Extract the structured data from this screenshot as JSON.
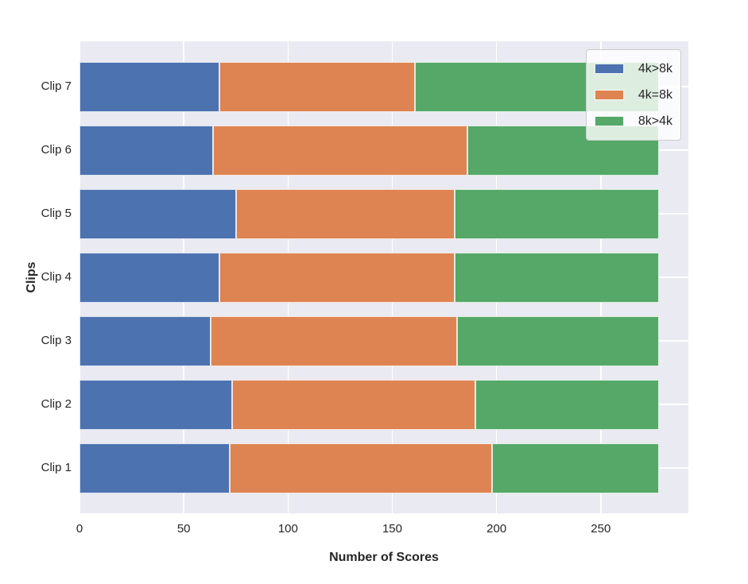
{
  "chart_data": {
    "type": "bar",
    "orientation": "horizontal",
    "stacked": true,
    "title": "",
    "xlabel": "Number of Scores",
    "ylabel": "Clips",
    "categories": [
      "Clip 7",
      "Clip 6",
      "Clip 5",
      "Clip 4",
      "Clip 3",
      "Clip 2",
      "Clip 1"
    ],
    "series": [
      {
        "name": "4k>8k",
        "color": "#4C72B0",
        "values": [
          67,
          64,
          75,
          67,
          63,
          73,
          72
        ]
      },
      {
        "name": "4k=8k",
        "color": "#DD8452",
        "values": [
          94,
          122,
          105,
          113,
          118,
          117,
          126
        ]
      },
      {
        "name": "8k>4k",
        "color": "#55A868",
        "values": [
          117,
          92,
          98,
          98,
          97,
          88,
          80
        ]
      }
    ],
    "totals_per_category": [
      278,
      278,
      278,
      278,
      278,
      278,
      278
    ],
    "xlim": [
      0,
      292
    ],
    "xticks": [
      0,
      50,
      100,
      150,
      200,
      250
    ],
    "grid": true,
    "legend_position": "upper right",
    "colors": {
      "plot_background": "#EAEAF2",
      "grid": "#FFFFFF",
      "figure_background": "#FFFFFF",
      "text": "#262626",
      "legend_background": "rgba(255,255,255,0.8)",
      "legend_border": "#CCCCCC"
    }
  }
}
